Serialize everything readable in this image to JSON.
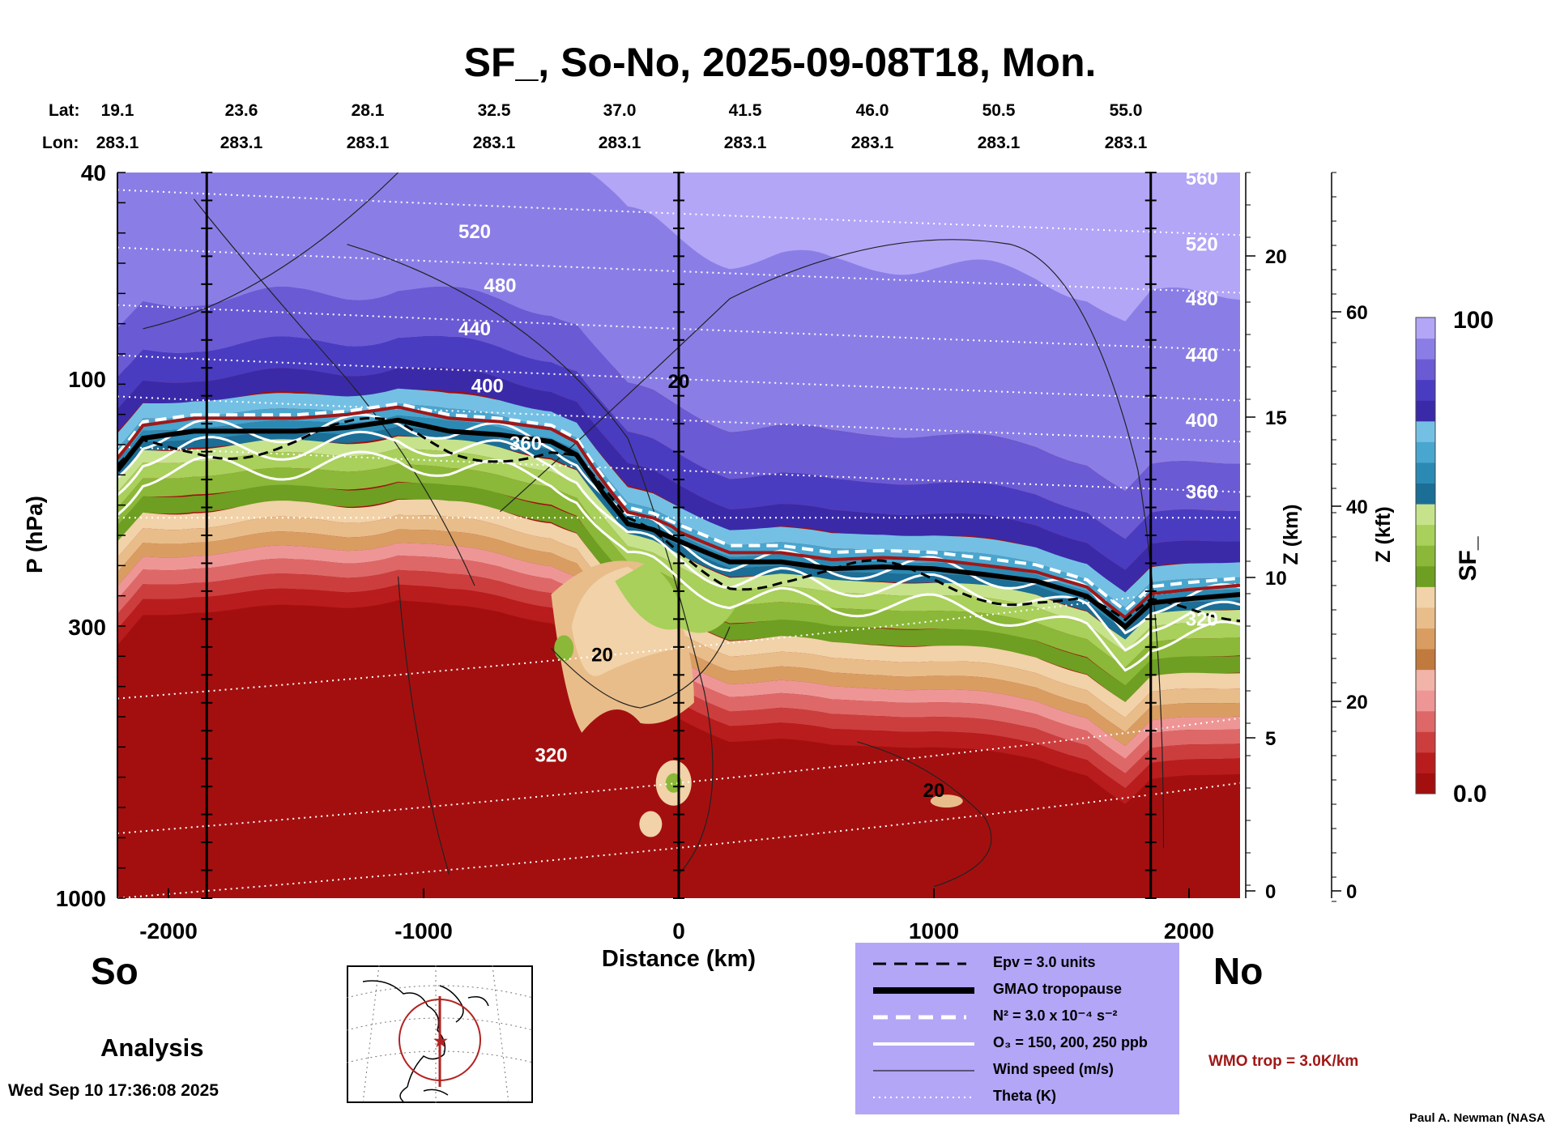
{
  "title": "SF_, So-No, 2025-09-08T18, Mon.",
  "header": {
    "lat_label": "Lat:",
    "lon_label": "Lon:",
    "lat": [
      "19.1",
      "23.6",
      "28.1",
      "32.5",
      "37.0",
      "41.5",
      "46.0",
      "50.5",
      "55.0"
    ],
    "lon": [
      "283.1",
      "283.1",
      "283.1",
      "283.1",
      "283.1",
      "283.1",
      "283.1",
      "283.1",
      "283.1"
    ]
  },
  "chart_data": {
    "type": "heatmap",
    "variable": "SF_",
    "xlabel": "Distance (km)",
    "ylabel": "P (hPa)",
    "xlim": [
      -2200,
      2200
    ],
    "ylim": [
      1000,
      40
    ],
    "y_scale": "log",
    "x_ticks": [
      "-2000",
      "-1000",
      "0",
      "1000",
      "2000"
    ],
    "y_ticks": [
      "40",
      "100",
      "300",
      "1000"
    ],
    "z_km_label": "Z (km)",
    "z_km_ticks": [
      "20",
      "15",
      "10",
      "5",
      "0"
    ],
    "z_kft_label": "Z (kft)",
    "z_kft_ticks": [
      "60",
      "40",
      "20",
      "0"
    ],
    "colorbar": {
      "label": "SF_",
      "max": "100",
      "min": "0.0",
      "colors": [
        "#a30f0f",
        "#b81c1c",
        "#cc3e3e",
        "#de6868",
        "#ee9696",
        "#f2b3a8",
        "#c07a3e",
        "#d99d62",
        "#e8bd8a",
        "#f2d2a8",
        "#6e9e22",
        "#8bb838",
        "#a8d05a",
        "#c6e38c",
        "#1b6e96",
        "#2b8ab3",
        "#48a6cf",
        "#74c0e4",
        "#3a2aa8",
        "#4a3cc0",
        "#6a5ad4",
        "#8a7ee6",
        "#b3a6f7"
      ]
    },
    "theta_labels": [
      "520",
      "480",
      "440",
      "400",
      "360",
      "320"
    ],
    "theta_labels_right": [
      "560",
      "520",
      "480",
      "440",
      "400",
      "360",
      "320"
    ],
    "wind_labels": [
      "20",
      "20",
      "20"
    ],
    "vertical_sections_km": [
      -1850,
      0,
      1850
    ],
    "tropopause_hpa": [
      [
        -2200,
        150
      ],
      [
        -2100,
        130
      ],
      [
        -1900,
        126
      ],
      [
        -1700,
        126
      ],
      [
        -1500,
        126
      ],
      [
        -1300,
        124
      ],
      [
        -1100,
        120
      ],
      [
        -900,
        126
      ],
      [
        -700,
        128
      ],
      [
        -500,
        132
      ],
      [
        -400,
        140
      ],
      [
        -300,
        165
      ],
      [
        -200,
        190
      ],
      [
        -100,
        195
      ],
      [
        0,
        205
      ],
      [
        100,
        215
      ],
      [
        200,
        225
      ],
      [
        400,
        225
      ],
      [
        600,
        232
      ],
      [
        800,
        230
      ],
      [
        1000,
        232
      ],
      [
        1200,
        238
      ],
      [
        1400,
        245
      ],
      [
        1600,
        262
      ],
      [
        1750,
        300
      ],
      [
        1850,
        270
      ],
      [
        2000,
        265
      ],
      [
        2200,
        260
      ]
    ]
  },
  "legend": [
    {
      "style": "dashed-black",
      "label": "Epv = 3.0 units"
    },
    {
      "style": "thick-black",
      "label": "GMAO tropopause"
    },
    {
      "style": "dashed-white",
      "label": "N² = 3.0 x 10⁻⁴ s⁻²"
    },
    {
      "style": "solid-white",
      "label": "O₃ = 150, 200, 250 ppb"
    },
    {
      "style": "thin-black",
      "label": "Wind speed (m/s)"
    },
    {
      "style": "dotted-white",
      "label": "Theta (K)"
    }
  ],
  "wmo": "WMO trop = 3.0K/km",
  "south": "So",
  "north": "No",
  "analysis": "Analysis",
  "timestamp": "Wed Sep 10 17:36:08 2025",
  "credit": "Paul A. Newman (NASA"
}
